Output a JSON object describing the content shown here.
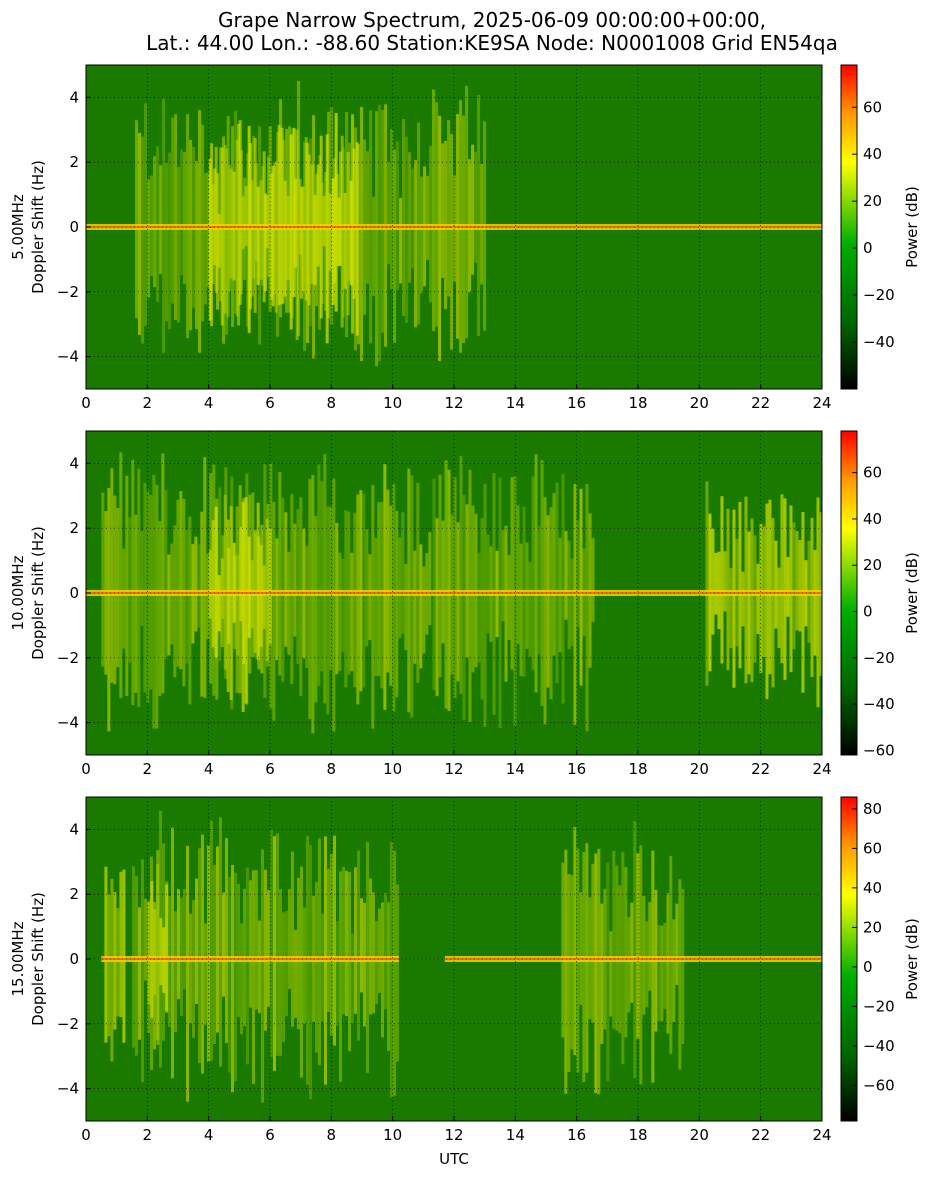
{
  "title_line1": "Grape Narrow Spectrum, 2025-06-09 00:00:00+00:00,",
  "title_line2": "Lat.: 44.00 Lon.: -88.60 Station:KE9SA Node: N0001008 Grid EN54qa",
  "xlabel": "UTC",
  "colorbar_label": "Power (dB)",
  "colors": {
    "colormap": [
      "#000000",
      "#006400",
      "#00b000",
      "#ffff00",
      "#ff9900",
      "#ff0000"
    ],
    "background": "#1a7a00"
  },
  "chart_data": [
    {
      "type": "heatmap",
      "name": "5.00MHz",
      "ylabel_line1": "5.00MHz",
      "ylabel_line2": "Doppler Shift (Hz)",
      "xlim": [
        0,
        24
      ],
      "ylim": [
        -5,
        5
      ],
      "x_ticks": [
        0,
        2,
        4,
        6,
        8,
        10,
        12,
        14,
        16,
        18,
        20,
        22,
        24
      ],
      "y_ticks": [
        -4,
        -2,
        0,
        2,
        4
      ],
      "grid": true,
      "colorbar_range": [
        -60,
        78
      ],
      "colorbar_ticks": [
        -40,
        -20,
        0,
        20,
        40,
        60
      ],
      "carrier_spans": [
        [
          0,
          24
        ]
      ],
      "broadband_spans": [
        [
          1.6,
          13.0
        ]
      ],
      "bright_spans": [
        [
          4.0,
          8.8
        ]
      ]
    },
    {
      "type": "heatmap",
      "name": "10.00MHz",
      "ylabel_line1": "10.00MHz",
      "ylabel_line2": "Doppler Shift (Hz)",
      "xlim": [
        0,
        24
      ],
      "ylim": [
        -5,
        5
      ],
      "x_ticks": [
        0,
        2,
        4,
        6,
        8,
        10,
        12,
        14,
        16,
        18,
        20,
        22,
        24
      ],
      "y_ticks": [
        -4,
        -2,
        0,
        2,
        4
      ],
      "grid": true,
      "colorbar_range": [
        -62,
        78
      ],
      "colorbar_ticks": [
        -60,
        -40,
        -20,
        0,
        20,
        40,
        60
      ],
      "carrier_spans": [
        [
          0,
          24
        ]
      ],
      "broadband_spans": [
        [
          0.5,
          11.2
        ],
        [
          11.3,
          16.5
        ]
      ],
      "bright_spans": [
        [
          4.0,
          6.0
        ],
        [
          20.2,
          24
        ]
      ]
    },
    {
      "type": "heatmap",
      "name": "15.00MHz",
      "ylabel_line1": "15.00MHz",
      "ylabel_line2": "Doppler Shift (Hz)",
      "xlim": [
        0,
        24
      ],
      "ylim": [
        -5,
        5
      ],
      "x_ticks": [
        0,
        2,
        4,
        6,
        8,
        10,
        12,
        14,
        16,
        18,
        20,
        22,
        24
      ],
      "y_ticks": [
        -4,
        -2,
        0,
        2,
        4
      ],
      "grid": true,
      "colorbar_range": [
        -78,
        86
      ],
      "colorbar_ticks": [
        -60,
        -40,
        -20,
        0,
        20,
        40,
        60,
        80
      ],
      "carrier_spans": [
        [
          0.5,
          10.2
        ],
        [
          11.7,
          24
        ]
      ],
      "broadband_spans": [
        [
          1.5,
          10.2
        ],
        [
          15.5,
          19.5
        ]
      ],
      "bright_spans": [
        [
          0.6,
          1.2
        ],
        [
          2.0,
          2.6
        ]
      ]
    }
  ]
}
